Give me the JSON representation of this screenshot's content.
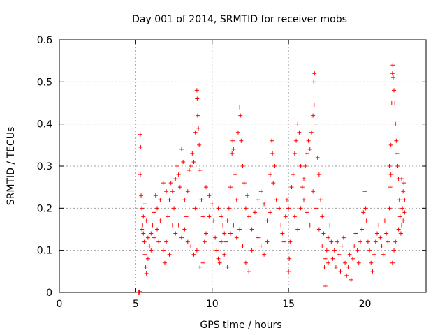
{
  "chart_data": {
    "type": "scatter",
    "title": "Day 001 of 2014, SRMTID for receiver mobs",
    "xlabel": "GPS time / hours",
    "ylabel": "SRMTID / TECUs",
    "xlim": [
      0,
      24
    ],
    "ylim": [
      0,
      0.6
    ],
    "xticks": [
      0,
      5,
      10,
      15,
      20
    ],
    "xtick_labels": [
      "0",
      "5",
      "10",
      "15",
      "20"
    ],
    "yticks": [
      0,
      0.1,
      0.2,
      0.3,
      0.4,
      0.5,
      0.6
    ],
    "ytick_labels": [
      "0",
      "0.1",
      "0.2",
      "0.3",
      "0.4",
      "0.5",
      "0.6"
    ],
    "grid": true,
    "marker": "+",
    "series": [
      {
        "name": "SRMTID",
        "color": "#ff0000",
        "points": [
          [
            5.2,
            0.0
          ],
          [
            5.22,
            0.0
          ],
          [
            5.25,
            0.002
          ],
          [
            5.3,
            0.375
          ],
          [
            5.32,
            0.345
          ],
          [
            5.3,
            0.28
          ],
          [
            5.35,
            0.23
          ],
          [
            5.4,
            0.2
          ],
          [
            5.45,
            0.16
          ],
          [
            5.5,
            0.14
          ],
          [
            5.55,
            0.12
          ],
          [
            5.6,
            0.09
          ],
          [
            5.65,
            0.06
          ],
          [
            5.7,
            0.045
          ],
          [
            5.4,
            0.15
          ],
          [
            5.5,
            0.18
          ],
          [
            5.6,
            0.21
          ],
          [
            5.7,
            0.17
          ],
          [
            5.8,
            0.13
          ],
          [
            5.9,
            0.11
          ],
          [
            6.0,
            0.14
          ],
          [
            6.1,
            0.16
          ],
          [
            6.2,
            0.19
          ],
          [
            6.3,
            0.23
          ],
          [
            6.4,
            0.15
          ],
          [
            6.5,
            0.12
          ],
          [
            5.8,
            0.08
          ],
          [
            6.0,
            0.1
          ],
          [
            6.2,
            0.13
          ],
          [
            6.4,
            0.2
          ],
          [
            6.6,
            0.17
          ],
          [
            6.8,
            0.1
          ],
          [
            6.9,
            0.07
          ],
          [
            7.0,
            0.12
          ],
          [
            7.1,
            0.18
          ],
          [
            7.2,
            0.22
          ],
          [
            7.3,
            0.26
          ],
          [
            7.4,
            0.24
          ],
          [
            7.5,
            0.2
          ],
          [
            7.6,
            0.27
          ],
          [
            7.7,
            0.3
          ],
          [
            7.8,
            0.28
          ],
          [
            7.9,
            0.25
          ],
          [
            8.0,
            0.34
          ],
          [
            8.1,
            0.31
          ],
          [
            8.2,
            0.22
          ],
          [
            8.3,
            0.18
          ],
          [
            8.4,
            0.24
          ],
          [
            8.5,
            0.29
          ],
          [
            8.6,
            0.3
          ],
          [
            8.7,
            0.33
          ],
          [
            8.8,
            0.31
          ],
          [
            8.9,
            0.38
          ],
          [
            9.0,
            0.48
          ],
          [
            9.02,
            0.46
          ],
          [
            9.05,
            0.42
          ],
          [
            9.1,
            0.39
          ],
          [
            9.15,
            0.35
          ],
          [
            9.2,
            0.29
          ],
          [
            9.3,
            0.22
          ],
          [
            9.4,
            0.18
          ],
          [
            9.5,
            0.12
          ],
          [
            7.6,
            0.14
          ],
          [
            7.8,
            0.16
          ],
          [
            8.0,
            0.13
          ],
          [
            8.2,
            0.15
          ],
          [
            8.4,
            0.12
          ],
          [
            8.6,
            0.11
          ],
          [
            8.8,
            0.09
          ],
          [
            9.0,
            0.1
          ],
          [
            9.2,
            0.06
          ],
          [
            9.4,
            0.07
          ],
          [
            9.6,
            0.14
          ],
          [
            9.8,
            0.18
          ],
          [
            6.6,
            0.22
          ],
          [
            6.8,
            0.26
          ],
          [
            7.0,
            0.24
          ],
          [
            7.4,
            0.16
          ],
          [
            7.2,
            0.09
          ],
          [
            8.9,
            0.2
          ],
          [
            9.6,
            0.25
          ],
          [
            9.8,
            0.23
          ],
          [
            10.0,
            0.21
          ],
          [
            10.1,
            0.17
          ],
          [
            10.2,
            0.13
          ],
          [
            10.3,
            0.1
          ],
          [
            10.4,
            0.08
          ],
          [
            10.5,
            0.07
          ],
          [
            10.6,
            0.18
          ],
          [
            10.7,
            0.16
          ],
          [
            10.8,
            0.14
          ],
          [
            10.9,
            0.12
          ],
          [
            11.0,
            0.17
          ],
          [
            11.1,
            0.2
          ],
          [
            11.2,
            0.25
          ],
          [
            11.3,
            0.33
          ],
          [
            11.35,
            0.36
          ],
          [
            11.4,
            0.34
          ],
          [
            11.5,
            0.28
          ],
          [
            11.6,
            0.22
          ],
          [
            11.7,
            0.38
          ],
          [
            11.8,
            0.44
          ],
          [
            11.85,
            0.42
          ],
          [
            11.9,
            0.36
          ],
          [
            12.0,
            0.3
          ],
          [
            12.1,
            0.26
          ],
          [
            10.4,
            0.2
          ],
          [
            10.6,
            0.12
          ],
          [
            10.8,
            0.09
          ],
          [
            11.0,
            0.06
          ],
          [
            11.2,
            0.14
          ],
          [
            11.4,
            0.16
          ],
          [
            11.6,
            0.13
          ],
          [
            11.8,
            0.15
          ],
          [
            12.0,
            0.11
          ],
          [
            12.2,
            0.07
          ],
          [
            12.4,
            0.05
          ],
          [
            12.6,
            0.1
          ],
          [
            12.2,
            0.2
          ],
          [
            12.3,
            0.23
          ],
          [
            12.4,
            0.18
          ],
          [
            12.6,
            0.15
          ],
          [
            12.8,
            0.19
          ],
          [
            13.0,
            0.22
          ],
          [
            13.2,
            0.24
          ],
          [
            13.4,
            0.21
          ],
          [
            13.6,
            0.17
          ],
          [
            13.8,
            0.19
          ],
          [
            14.0,
            0.26
          ],
          [
            14.1,
            0.3
          ],
          [
            13.0,
            0.13
          ],
          [
            13.2,
            0.11
          ],
          [
            13.4,
            0.09
          ],
          [
            13.6,
            0.12
          ],
          [
            13.8,
            0.28
          ],
          [
            13.9,
            0.36
          ],
          [
            13.95,
            0.33
          ],
          [
            14.2,
            0.22
          ],
          [
            14.4,
            0.2
          ],
          [
            14.5,
            0.16
          ],
          [
            14.6,
            0.14
          ],
          [
            14.7,
            0.12
          ],
          [
            14.8,
            0.18
          ],
          [
            14.9,
            0.22
          ],
          [
            15.0,
            0.2
          ],
          [
            15.1,
            0.12
          ],
          [
            15.05,
            0.08
          ],
          [
            15.0,
            0.05
          ],
          [
            15.2,
            0.25
          ],
          [
            15.3,
            0.28
          ],
          [
            15.4,
            0.33
          ],
          [
            15.5,
            0.36
          ],
          [
            15.6,
            0.4
          ],
          [
            15.7,
            0.38
          ],
          [
            15.8,
            0.3
          ],
          [
            15.9,
            0.25
          ],
          [
            16.0,
            0.27
          ],
          [
            16.1,
            0.3
          ],
          [
            16.2,
            0.33
          ],
          [
            16.3,
            0.36
          ],
          [
            16.4,
            0.34
          ],
          [
            16.5,
            0.38
          ],
          [
            16.6,
            0.42
          ],
          [
            16.65,
            0.5
          ],
          [
            16.7,
            0.52
          ],
          [
            16.68,
            0.445
          ],
          [
            16.8,
            0.4
          ],
          [
            16.9,
            0.32
          ],
          [
            17.0,
            0.28
          ],
          [
            17.1,
            0.22
          ],
          [
            17.2,
            0.18
          ],
          [
            17.3,
            0.14
          ],
          [
            17.35,
            0.06
          ],
          [
            17.4,
            0.015
          ],
          [
            17.5,
            0.1
          ],
          [
            17.6,
            0.13
          ],
          [
            17.7,
            0.16
          ],
          [
            17.8,
            0.12
          ],
          [
            15.4,
            0.18
          ],
          [
            15.6,
            0.15
          ],
          [
            15.8,
            0.2
          ],
          [
            16.0,
            0.22
          ],
          [
            16.2,
            0.19
          ],
          [
            16.4,
            0.16
          ],
          [
            16.6,
            0.24
          ],
          [
            16.8,
            0.2
          ],
          [
            17.0,
            0.15
          ],
          [
            17.2,
            0.11
          ],
          [
            17.4,
            0.08
          ],
          [
            17.6,
            0.07
          ],
          [
            17.9,
            0.08
          ],
          [
            18.0,
            0.1
          ],
          [
            18.1,
            0.06
          ],
          [
            18.2,
            0.12
          ],
          [
            18.3,
            0.09
          ],
          [
            18.4,
            0.05
          ],
          [
            18.5,
            0.11
          ],
          [
            18.6,
            0.13
          ],
          [
            18.7,
            0.07
          ],
          [
            18.8,
            0.04
          ],
          [
            18.9,
            0.06
          ],
          [
            19.0,
            0.09
          ],
          [
            19.1,
            0.03
          ],
          [
            19.2,
            0.08
          ],
          [
            19.3,
            0.11
          ],
          [
            19.4,
            0.14
          ],
          [
            19.5,
            0.1
          ],
          [
            19.6,
            0.07
          ],
          [
            19.7,
            0.12
          ],
          [
            19.8,
            0.15
          ],
          [
            19.9,
            0.19
          ],
          [
            20.0,
            0.24
          ],
          [
            20.05,
            0.2
          ],
          [
            20.1,
            0.17
          ],
          [
            20.2,
            0.12
          ],
          [
            20.3,
            0.1
          ],
          [
            20.4,
            0.07
          ],
          [
            20.5,
            0.05
          ],
          [
            20.6,
            0.09
          ],
          [
            20.7,
            0.12
          ],
          [
            20.8,
            0.14
          ],
          [
            20.9,
            0.16
          ],
          [
            21.0,
            0.13
          ],
          [
            21.1,
            0.11
          ],
          [
            21.2,
            0.09
          ],
          [
            21.3,
            0.17
          ],
          [
            21.4,
            0.14
          ],
          [
            21.5,
            0.12
          ],
          [
            21.6,
            0.2
          ],
          [
            21.65,
            0.25
          ],
          [
            21.7,
            0.35
          ],
          [
            21.75,
            0.45
          ],
          [
            21.8,
            0.52
          ],
          [
            21.82,
            0.54
          ],
          [
            21.85,
            0.51
          ],
          [
            21.9,
            0.48
          ],
          [
            21.95,
            0.45
          ],
          [
            22.0,
            0.4
          ],
          [
            22.05,
            0.36
          ],
          [
            22.1,
            0.33
          ],
          [
            22.15,
            0.3
          ],
          [
            22.2,
            0.27
          ],
          [
            22.25,
            0.22
          ],
          [
            22.3,
            0.18
          ],
          [
            22.35,
            0.14
          ],
          [
            22.4,
            0.16
          ],
          [
            22.45,
            0.2
          ],
          [
            22.5,
            0.24
          ],
          [
            22.55,
            0.26
          ],
          [
            22.6,
            0.22
          ],
          [
            21.9,
            0.1
          ],
          [
            21.8,
            0.07
          ],
          [
            22.0,
            0.12
          ],
          [
            22.2,
            0.15
          ],
          [
            22.4,
            0.27
          ],
          [
            22.6,
            0.19
          ],
          [
            22.5,
            0.17
          ],
          [
            21.6,
            0.3
          ],
          [
            21.7,
            0.28
          ]
        ]
      }
    ]
  }
}
